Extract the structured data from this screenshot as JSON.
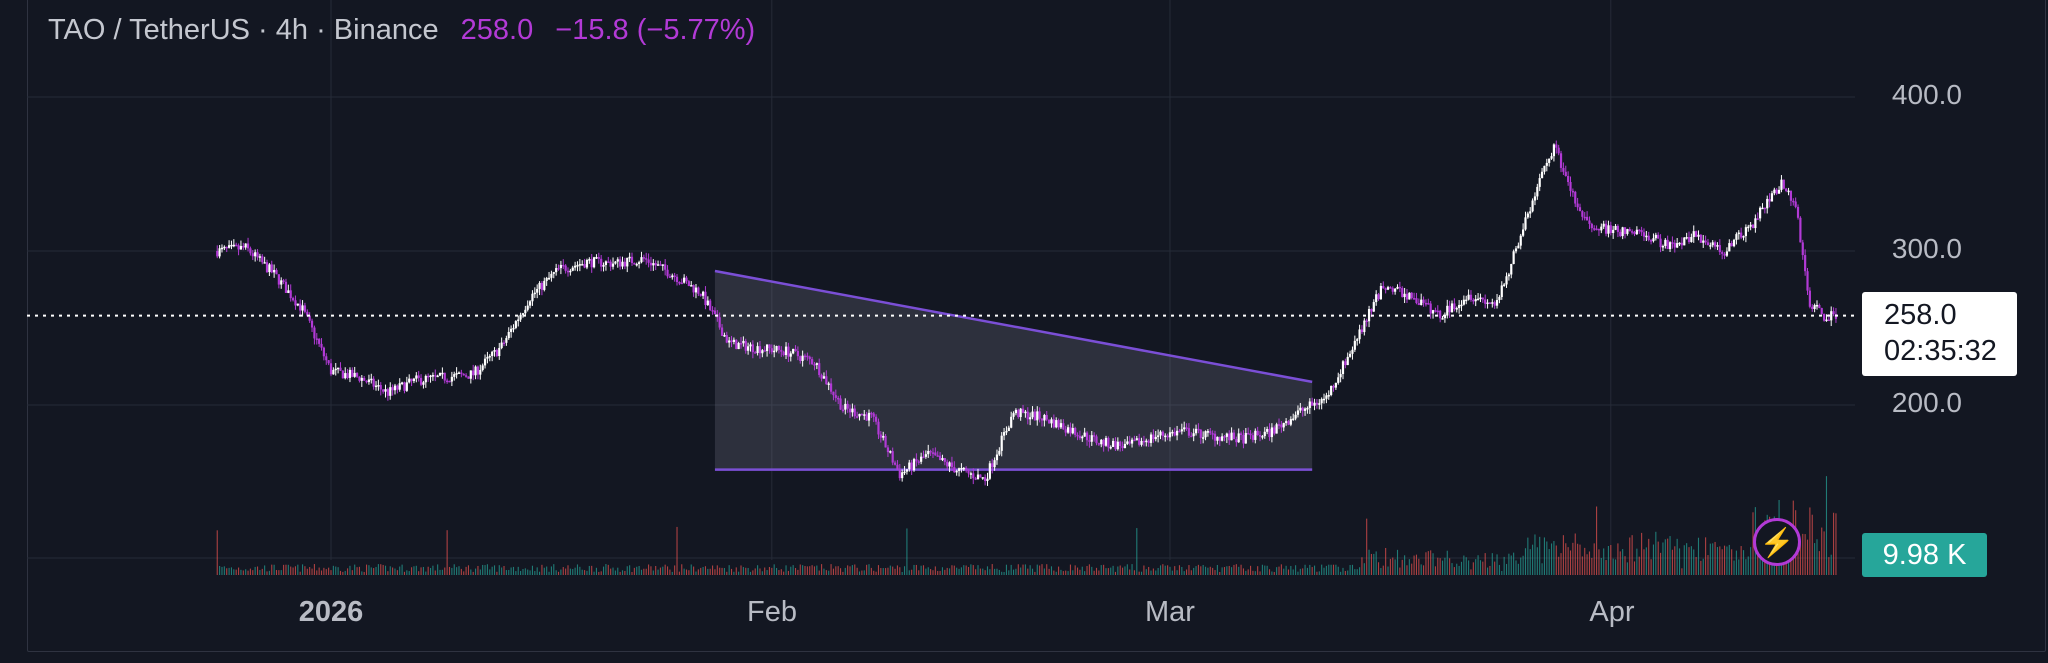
{
  "header": {
    "symbol": "TAO / TetherUS · 4h · Binance",
    "last_price": "258.0",
    "change": "−15.8 (−5.77%)"
  },
  "price_axis": {
    "labels": [
      "400.0",
      "300.0",
      "200.0"
    ],
    "last_price_label": "258.0",
    "countdown": "02:35:32",
    "volume_label": "9.98 K"
  },
  "time_axis": {
    "labels": [
      {
        "text": "2026",
        "bold": true
      },
      {
        "text": "Feb",
        "bold": false
      },
      {
        "text": "Mar",
        "bold": false
      },
      {
        "text": "Apr",
        "bold": false
      }
    ]
  },
  "colors": {
    "background": "#131722",
    "up_candle": "#ffffff",
    "down_candle": "#b23ad6",
    "pattern": "#7b4fd6",
    "volume_up": "#26a69a",
    "volume_down": "#ef5350"
  },
  "icons": {
    "flash": "lightning-icon"
  },
  "chart_data": {
    "type": "candlestick",
    "symbol": "TAO / TetherUS",
    "interval": "4h",
    "exchange": "Binance",
    "ylim": [
      145,
      445
    ],
    "y_ticks": [
      200,
      300,
      400
    ],
    "last_price": 258.0,
    "x_labels": [
      "2026",
      "Feb",
      "Mar",
      "Apr"
    ],
    "close_path": [
      [
        "Dec 24",
        300
      ],
      [
        "Dec 26",
        302
      ],
      [
        "Dec 28",
        285
      ],
      [
        "Dec 30",
        262
      ],
      [
        "Jan 1",
        222
      ],
      [
        "Jan 3",
        218
      ],
      [
        "Jan 5",
        208
      ],
      [
        "Jan 7",
        216
      ],
      [
        "Jan 9",
        218
      ],
      [
        "Jan 11",
        220
      ],
      [
        "Jan 13",
        238
      ],
      [
        "Jan 15",
        270
      ],
      [
        "Jan 17",
        288
      ],
      [
        "Jan 19",
        293
      ],
      [
        "Jan 21",
        292
      ],
      [
        "Jan 23",
        295
      ],
      [
        "Jan 25",
        285
      ],
      [
        "Jan 27",
        273
      ],
      [
        "Jan 29",
        240
      ],
      [
        "Jan 31",
        237
      ],
      [
        "Feb 2",
        235
      ],
      [
        "Feb 4",
        228
      ],
      [
        "Feb 6",
        198
      ],
      [
        "Feb 8",
        192
      ],
      [
        "Feb 10",
        155
      ],
      [
        "Feb 12",
        168
      ],
      [
        "Feb 14",
        158
      ],
      [
        "Feb 16",
        152
      ],
      [
        "Feb 18",
        195
      ],
      [
        "Feb 20",
        192
      ],
      [
        "Feb 22",
        184
      ],
      [
        "Feb 24",
        176
      ],
      [
        "Feb 26",
        173
      ],
      [
        "Feb 28",
        180
      ],
      [
        "Mar 2",
        183
      ],
      [
        "Mar 4",
        180
      ],
      [
        "Mar 6",
        178
      ],
      [
        "Mar 8",
        182
      ],
      [
        "Mar 10",
        195
      ],
      [
        "Mar 12",
        205
      ],
      [
        "Mar 14",
        240
      ],
      [
        "Mar 16",
        278
      ],
      [
        "Mar 18",
        270
      ],
      [
        "Mar 20",
        258
      ],
      [
        "Mar 22",
        272
      ],
      [
        "Mar 24",
        265
      ],
      [
        "Mar 26",
        320
      ],
      [
        "Mar 28",
        368
      ],
      [
        "Mar 30",
        320
      ],
      [
        "Apr 1",
        313
      ],
      [
        "Apr 3",
        312
      ],
      [
        "Apr 5",
        304
      ],
      [
        "Apr 7",
        310
      ],
      [
        "Apr 9",
        300
      ],
      [
        "Apr 11",
        318
      ],
      [
        "Apr 13",
        345
      ],
      [
        "Apr 14",
        330
      ],
      [
        "Apr 15",
        265
      ],
      [
        "Apr 16",
        258
      ],
      [
        "Apr 17",
        258
      ]
    ],
    "pattern": {
      "type": "descending triangle",
      "upper_line": [
        [
          "Jan 28",
          287
        ],
        [
          "Mar 11",
          215
        ]
      ],
      "lower_line": [
        [
          "Jan 28",
          158
        ],
        [
          "Mar 11",
          158
        ]
      ]
    }
  }
}
